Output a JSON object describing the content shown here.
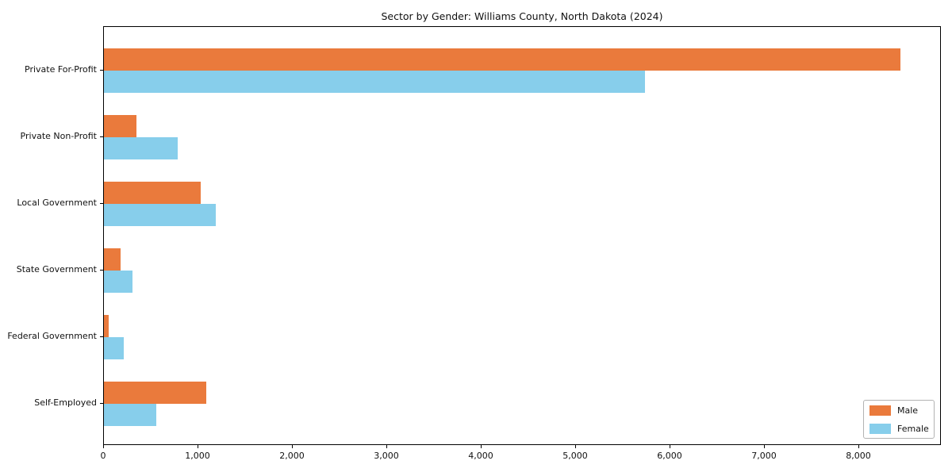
{
  "chart_data": {
    "type": "bar",
    "orientation": "horizontal",
    "title": "Sector by Gender: Williams County, North Dakota (2024)",
    "xlabel": "",
    "ylabel": "",
    "categories": [
      "Private For-Profit",
      "Private Non-Profit",
      "Local Government",
      "State Government",
      "Federal Government",
      "Self-Employed"
    ],
    "series": [
      {
        "name": "Male",
        "color": "#ea7a3c",
        "values": [
          8450,
          345,
          1030,
          175,
          50,
          1090
        ]
      },
      {
        "name": "Female",
        "color": "#87ceeb",
        "values": [
          5740,
          780,
          1190,
          300,
          210,
          555
        ]
      }
    ],
    "xlim": [
      0,
      8874
    ],
    "x_ticks": [
      0,
      1000,
      2000,
      3000,
      4000,
      5000,
      6000,
      7000,
      8000
    ],
    "x_tick_labels": [
      "0",
      "1,000",
      "2,000",
      "3,000",
      "4,000",
      "5,000",
      "6,000",
      "7,000",
      "8,000"
    ],
    "grid": "off",
    "legend": {
      "position": "lower right",
      "entries": [
        "Male",
        "Female"
      ]
    }
  }
}
